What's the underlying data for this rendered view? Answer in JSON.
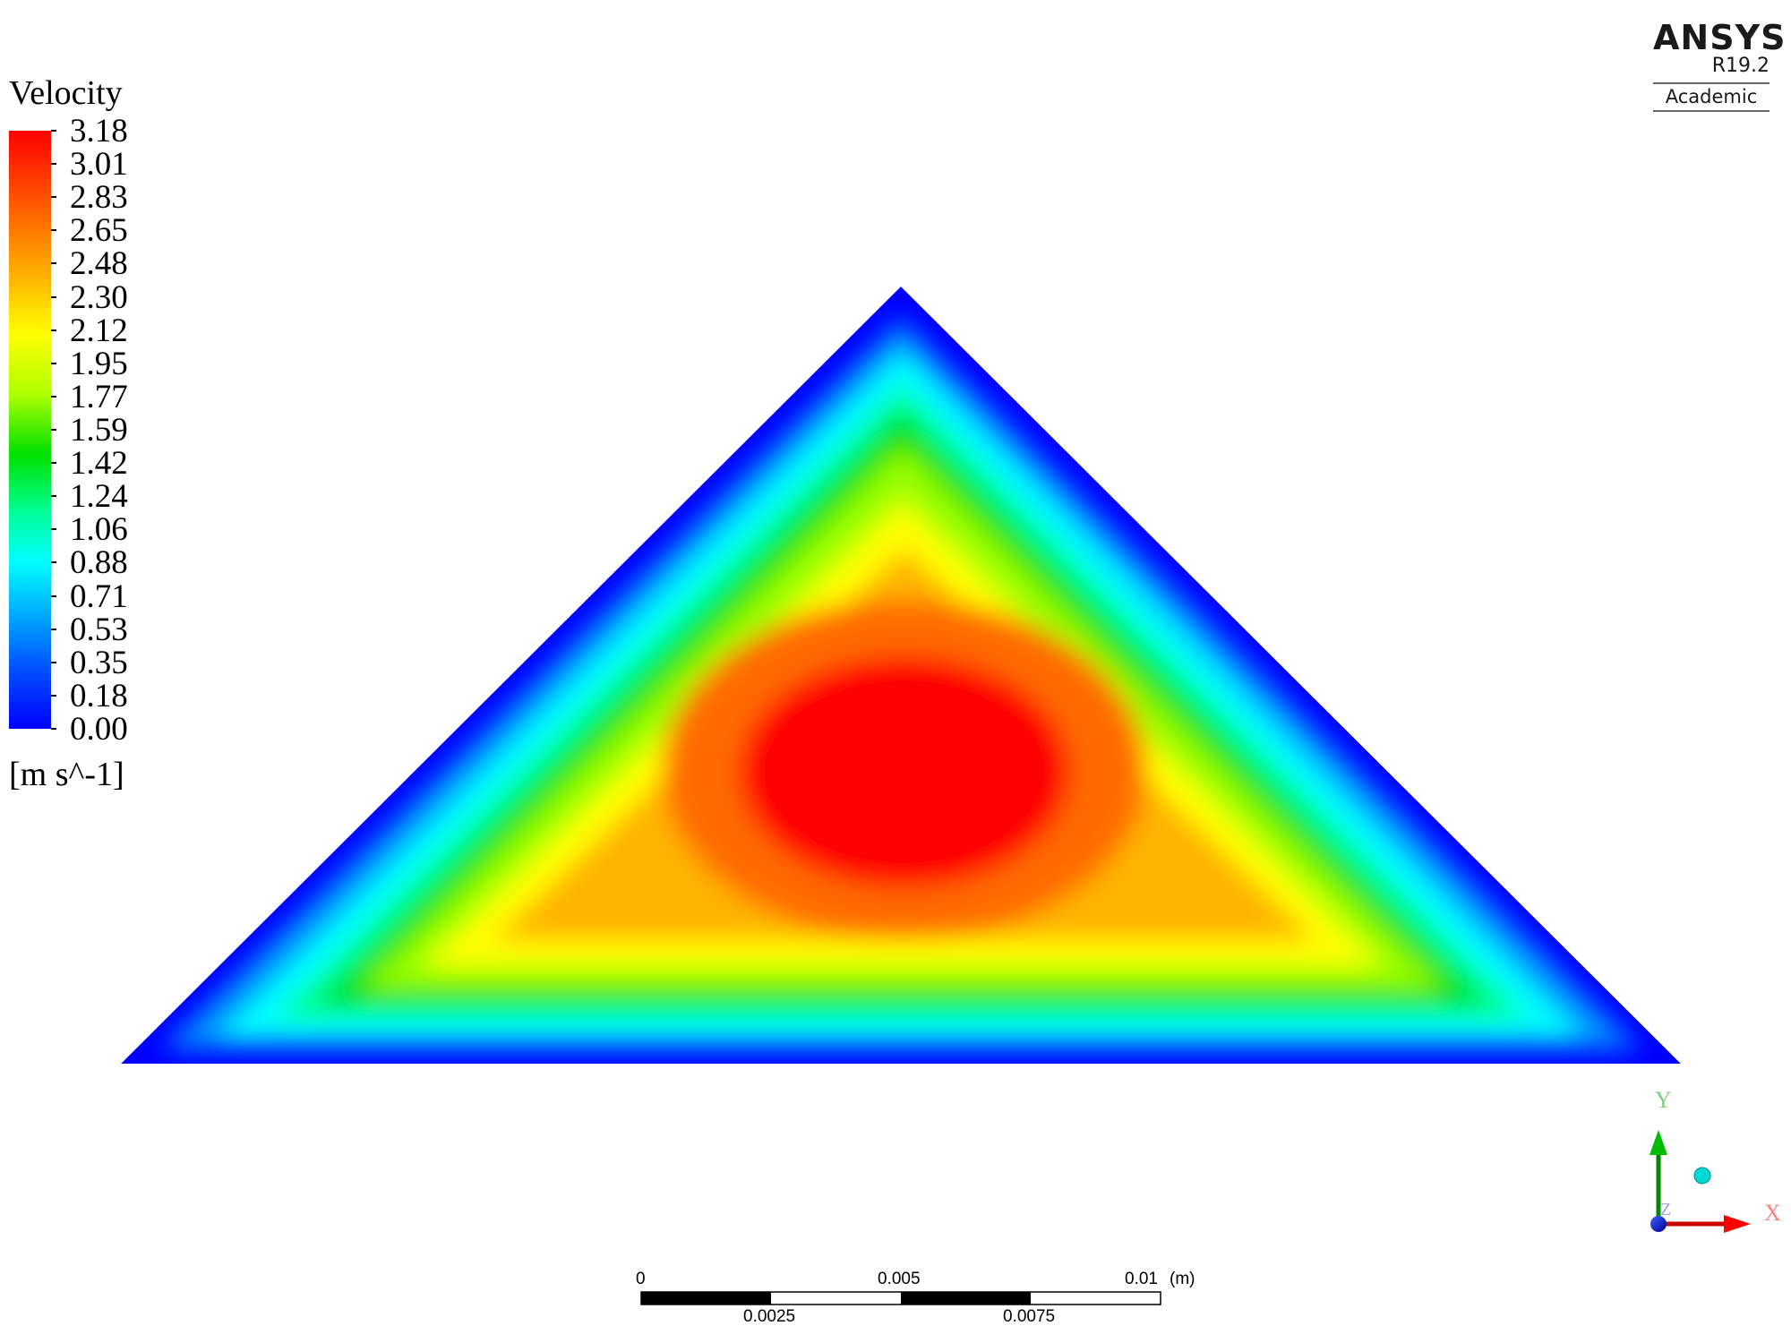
{
  "chart_data": {
    "type": "heatmap",
    "quantity": "Velocity",
    "unit": "[m s^-1]",
    "colorbar": {
      "min": 0.0,
      "max": 3.18,
      "ticks": [
        "3.18",
        "3.01",
        "2.83",
        "2.65",
        "2.48",
        "2.30",
        "2.12",
        "1.95",
        "1.77",
        "1.59",
        "1.42",
        "1.24",
        "1.06",
        "0.88",
        "0.71",
        "0.53",
        "0.35",
        "0.18",
        "0.00"
      ],
      "colors": [
        "#0000ff",
        "#00ffff",
        "#00e000",
        "#ffff00",
        "#ff0000"
      ]
    },
    "domain": {
      "shape": "triangle",
      "x_range_m": [
        0,
        0.015
      ],
      "peak_value": 3.18,
      "boundary_value": 0.0
    },
    "scale_bar": {
      "top_labels": [
        "0",
        "0.005",
        "0.01"
      ],
      "bottom_labels": [
        "0.0025",
        "0.0075"
      ],
      "unit": "(m)"
    },
    "axes_triad": {
      "x_label": "X",
      "y_label": "Y",
      "z_label": "Z"
    }
  },
  "branding": {
    "brand": "ANSYS",
    "version": "R19.2",
    "edition": "Academic"
  }
}
